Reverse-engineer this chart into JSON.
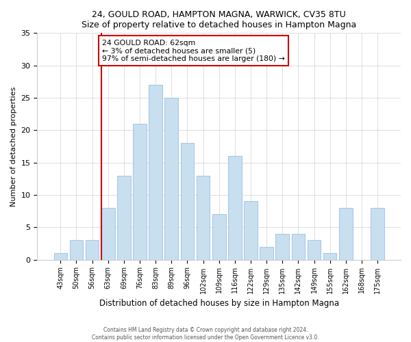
{
  "title1": "24, GOULD ROAD, HAMPTON MAGNA, WARWICK, CV35 8TU",
  "title2": "Size of property relative to detached houses in Hampton Magna",
  "xlabel": "Distribution of detached houses by size in Hampton Magna",
  "ylabel": "Number of detached properties",
  "bar_labels": [
    "43sqm",
    "50sqm",
    "56sqm",
    "63sqm",
    "69sqm",
    "76sqm",
    "83sqm",
    "89sqm",
    "96sqm",
    "102sqm",
    "109sqm",
    "116sqm",
    "122sqm",
    "129sqm",
    "135sqm",
    "142sqm",
    "149sqm",
    "155sqm",
    "162sqm",
    "168sqm",
    "175sqm"
  ],
  "bar_values": [
    1,
    3,
    3,
    8,
    13,
    21,
    27,
    25,
    18,
    13,
    7,
    16,
    9,
    2,
    4,
    4,
    3,
    1,
    8,
    0,
    8
  ],
  "bar_color": "#c8dff0",
  "bar_edgecolor": "#a8c8e8",
  "annotation_box_text": "24 GOULD ROAD: 62sqm\n← 3% of detached houses are smaller (5)\n97% of semi-detached houses are larger (180) →",
  "annotation_box_edgecolor": "#cc0000",
  "vline_color": "#cc0000",
  "ylim": [
    0,
    35
  ],
  "yticks": [
    0,
    5,
    10,
    15,
    20,
    25,
    30,
    35
  ],
  "footer1": "Contains HM Land Registry data © Crown copyright and database right 2024.",
  "footer2": "Contains public sector information licensed under the Open Government Licence v3.0.",
  "background_color": "#ffffff",
  "grid_color": "#dddddd"
}
